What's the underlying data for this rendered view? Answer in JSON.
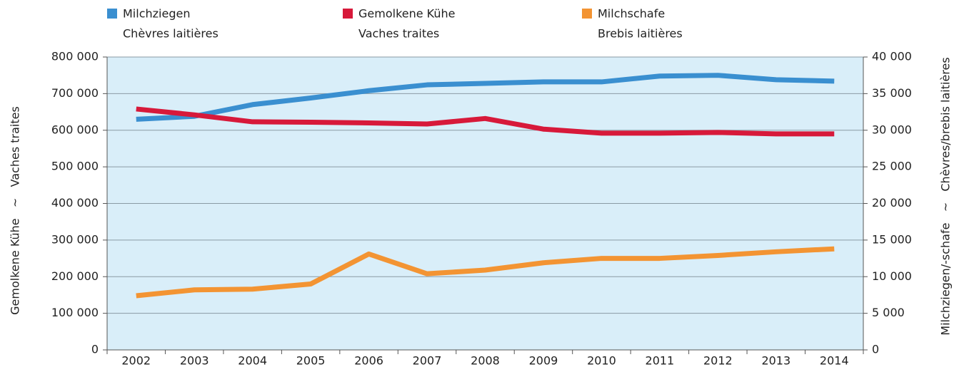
{
  "chart_data": {
    "type": "line",
    "categories": [
      "2002",
      "2003",
      "2004",
      "2005",
      "2006",
      "2007",
      "2008",
      "2009",
      "2010",
      "2011",
      "2012",
      "2013",
      "2014"
    ],
    "series": [
      {
        "name": [
          "Milchziegen",
          "Chèvres laitières"
        ],
        "color": "#3a8fd0",
        "axis": "y2",
        "values": [
          31500,
          31900,
          33500,
          34400,
          35400,
          36200,
          36400,
          36600,
          36600,
          37400,
          37500,
          36900,
          36700
        ]
      },
      {
        "name": [
          "Gemolkene Kühe",
          "Vaches traites"
        ],
        "color": "#d7193a",
        "axis": "y",
        "values": [
          658000,
          642000,
          623000,
          622000,
          620000,
          617000,
          632000,
          603000,
          592000,
          592000,
          594000,
          590000,
          590000
        ]
      },
      {
        "name": [
          "Milchschafe",
          "Brebis laitières"
        ],
        "color": "#f39433",
        "axis": "y2",
        "values": [
          7400,
          8200,
          8300,
          9000,
          13100,
          10400,
          10900,
          11900,
          12500,
          12500,
          12900,
          13400,
          13800
        ]
      }
    ],
    "ylabel": "Gemolkene Kühe   ~   Vaches traites",
    "y2label": "Milchziegen/-schafe   ~   Chèvres/brebis laitières",
    "ylim": [
      0,
      800000
    ],
    "yticks": [
      0,
      {
        "value": 100000,
        "label": "100 000"
      },
      {
        "value": 200000,
        "label": "200 000"
      },
      {
        "value": 300000,
        "label": "300 000"
      },
      {
        "value": 400000,
        "label": "400 000"
      },
      {
        "value": 500000,
        "label": "500 000"
      },
      {
        "value": 600000,
        "label": "600 000"
      },
      {
        "value": 700000,
        "label": "700 000"
      },
      {
        "value": 800000,
        "label": "800 000"
      }
    ],
    "y2lim": [
      0,
      40000
    ],
    "y2ticks": [
      0,
      {
        "value": 5000,
        "label": "5 000"
      },
      {
        "value": 10000,
        "label": "10 000"
      },
      {
        "value": 15000,
        "label": "15 000"
      },
      {
        "value": 20000,
        "label": "20 000"
      },
      {
        "value": 25000,
        "label": "25 000"
      },
      {
        "value": 30000,
        "label": "30 000"
      },
      {
        "value": 35000,
        "label": "35 000"
      },
      {
        "value": 40000,
        "label": "40 000"
      }
    ],
    "grid": true,
    "legend": "top"
  }
}
